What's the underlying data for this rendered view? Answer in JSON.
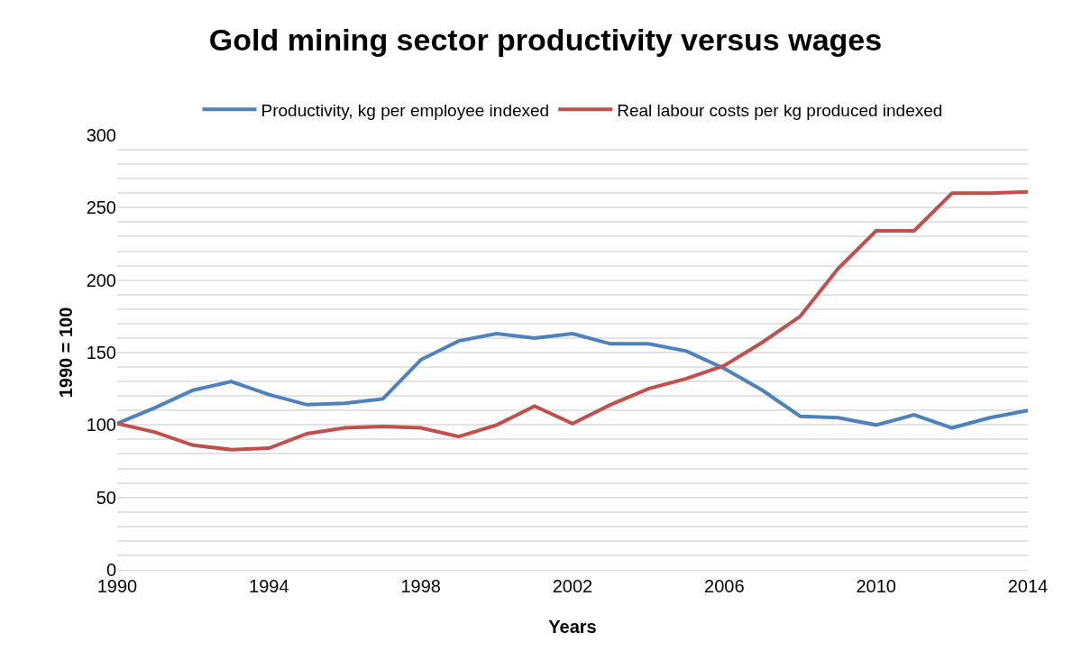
{
  "chart_data": {
    "type": "line",
    "title": "Gold mining sector productivity versus wages",
    "xlabel": "Years",
    "ylabel": "1990 = 100",
    "x": [
      1990,
      1991,
      1992,
      1993,
      1994,
      1995,
      1996,
      1997,
      1998,
      1999,
      2000,
      2001,
      2002,
      2003,
      2004,
      2005,
      2006,
      2007,
      2008,
      2009,
      2010,
      2011,
      2012,
      2013,
      2014
    ],
    "series": [
      {
        "name": "Productivity, kg per employee indexed",
        "color": "#4f81bd",
        "values": [
          101,
          112,
          124,
          130,
          121,
          114,
          115,
          118,
          145,
          158,
          163,
          160,
          163,
          156,
          156,
          151,
          139,
          124,
          106,
          105,
          100,
          107,
          98,
          105,
          110
        ]
      },
      {
        "name": "Real labour costs per kg produced indexed",
        "color": "#c0504d",
        "values": [
          101,
          95,
          86,
          83,
          84,
          94,
          98,
          99,
          98,
          92,
          100,
          113,
          101,
          114,
          125,
          132,
          141,
          157,
          175,
          208,
          234,
          234,
          260,
          260,
          261
        ]
      }
    ],
    "xlim": [
      1990,
      2014
    ],
    "xticks": [
      1990,
      1994,
      1998,
      2002,
      2006,
      2010,
      2014
    ],
    "ylim": [
      0,
      300
    ],
    "yticks": [
      0,
      {
        "value": 10,
        "label": null
      },
      {
        "value": 20,
        "label": null
      },
      {
        "value": 30,
        "label": null
      },
      {
        "value": 40,
        "label": null
      },
      50,
      {
        "value": 60,
        "label": null
      },
      {
        "value": 70,
        "label": null
      },
      {
        "value": 80,
        "label": null
      },
      {
        "value": 90,
        "label": null
      },
      100,
      {
        "value": 110,
        "label": null
      },
      {
        "value": 120,
        "label": null
      },
      {
        "value": 130,
        "label": null
      },
      {
        "value": 140,
        "label": null
      },
      150,
      {
        "value": 160,
        "label": null
      },
      {
        "value": 170,
        "label": null
      },
      {
        "value": 180,
        "label": null
      },
      {
        "value": 190,
        "label": null
      },
      200,
      {
        "value": 210,
        "label": null
      },
      {
        "value": 220,
        "label": null
      },
      {
        "value": 230,
        "label": null
      },
      {
        "value": 240,
        "label": null
      },
      250,
      {
        "value": 260,
        "label": null
      },
      {
        "value": 270,
        "label": null
      },
      {
        "value": 280,
        "label": null
      },
      {
        "value": 290,
        "label": null
      },
      300
    ],
    "grid": "y",
    "legend": "top",
    "marker": "none",
    "line_style": "solid"
  }
}
